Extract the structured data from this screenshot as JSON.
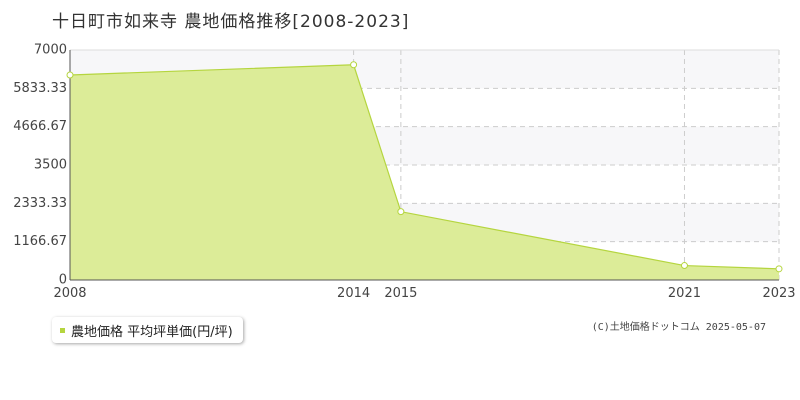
{
  "title": "十日町市如来寺 農地価格推移[2008-2023]",
  "legend": {
    "label": "農地価格 平均坪単価(円/坪)"
  },
  "credit": "(C)土地価格ドットコム 2025-05-07",
  "colors": {
    "line": "#b5d53f",
    "fill": "#dcec98",
    "band": "#f7f7f9",
    "grid": "#cccccc"
  },
  "chart_data": {
    "type": "area",
    "title": "十日町市如来寺 農地価格推移[2008-2023]",
    "x": [
      2008,
      2014,
      2015,
      2021,
      2023
    ],
    "x_tick_labels": [
      "2008",
      "2014",
      "2015",
      "2021",
      "2023"
    ],
    "series": [
      {
        "name": "農地価格 平均坪単価(円/坪)",
        "values": [
          6240,
          6550,
          2080,
          440,
          340
        ]
      }
    ],
    "ylim": [
      0,
      7000
    ],
    "y_ticks": [
      0,
      1166.67,
      2333.33,
      3500,
      4666.67,
      5833.33,
      7000
    ],
    "y_tick_labels": [
      "0",
      "1166.67",
      "2333.33",
      "3500",
      "4666.67",
      "5833.33",
      "7000"
    ],
    "grid": true,
    "legend_position": "bottom-left"
  }
}
